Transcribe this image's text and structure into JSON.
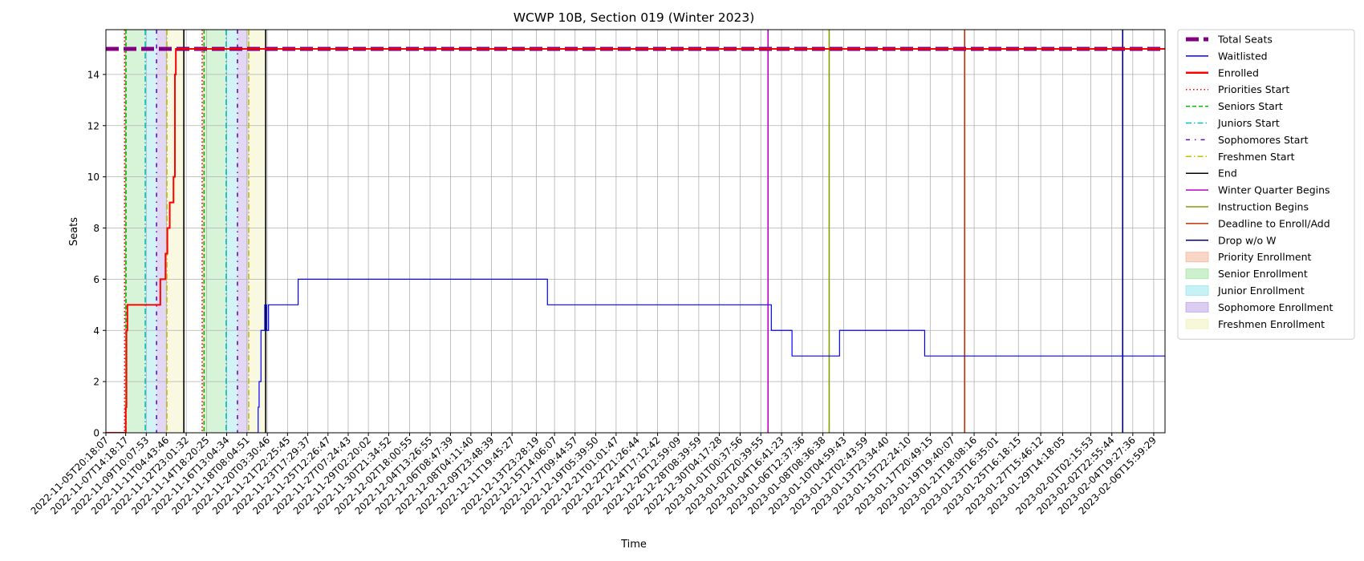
{
  "chart_data": {
    "type": "line",
    "title": "WCWP 10B, Section 019 (Winter 2023)",
    "xlabel": "Time",
    "ylabel": "Seats",
    "ylim": [
      0,
      15.75
    ],
    "xlim": [
      "2022-11-05T20:18:07",
      "2023-02-07T16:00:00"
    ],
    "grid": true,
    "legend_position": "outside-right",
    "y_ticks": [
      0,
      2,
      4,
      6,
      8,
      10,
      12,
      14
    ],
    "x_ticks": [
      "2022-11-05T20:18:07",
      "2022-11-07T14:18:17",
      "2022-11-09T10:07:53",
      "2022-11-11T04:43:46",
      "2022-11-12T23:01:32",
      "2022-11-14T18:20:25",
      "2022-11-16T13:04:34",
      "2022-11-18T08:04:51",
      "2022-11-20T03:30:46",
      "2022-11-21T22:25:45",
      "2022-11-23T17:29:37",
      "2022-11-25T12:26:47",
      "2022-11-27T07:24:43",
      "2022-11-29T02:20:02",
      "2022-11-30T21:34:52",
      "2022-12-02T18:00:55",
      "2022-12-04T13:26:55",
      "2022-12-06T08:47:39",
      "2022-12-08T04:11:40",
      "2022-12-09T23:48:39",
      "2022-12-11T19:45:27",
      "2022-12-13T23:28:19",
      "2022-12-15T14:06:07",
      "2022-12-17T09:44:57",
      "2022-12-19T05:39:50",
      "2022-12-21T01:01:47",
      "2022-12-22T21:26:44",
      "2022-12-24T17:12:42",
      "2022-12-26T12:59:09",
      "2022-12-28T08:39:59",
      "2022-12-30T04:17:28",
      "2023-01-01T00:37:56",
      "2023-01-02T20:39:55",
      "2023-01-04T16:41:23",
      "2023-01-06T12:37:36",
      "2023-01-08T08:36:38",
      "2023-01-10T04:59:43",
      "2023-01-12T02:43:59",
      "2023-01-13T23:34:40",
      "2023-01-15T22:24:10",
      "2023-01-17T20:49:15",
      "2023-01-19T19:40:07",
      "2023-01-21T18:08:16",
      "2023-01-23T16:35:01",
      "2023-01-25T16:18:15",
      "2023-01-27T15:46:12",
      "2023-01-29T14:18:05",
      "2023-02-01T02:15:53",
      "2023-02-02T22:55:44",
      "2023-02-04T19:27:36",
      "2023-02-06T15:59:29"
    ],
    "series": [
      {
        "name": "Total Seats",
        "color": "#800080",
        "style": "dashed-thick",
        "points": [
          [
            "2022-11-05T20:18:07",
            15
          ],
          [
            "2023-02-07T16:00:00",
            15
          ]
        ]
      },
      {
        "name": "Waitlisted",
        "color": "#0000ff",
        "style": "step",
        "points": [
          [
            "2022-11-18T08:04:51",
            0
          ],
          [
            "2022-11-19T08:00:00",
            1
          ],
          [
            "2022-11-19T10:00:00",
            2
          ],
          [
            "2022-11-19T14:00:00",
            4
          ],
          [
            "2022-11-19T22:00:00",
            5
          ],
          [
            "2022-11-20T02:00:00",
            4
          ],
          [
            "2022-11-20T06:00:00",
            5
          ],
          [
            "2022-11-22T21:00:00",
            6
          ],
          [
            "2022-12-14T23:00:00",
            5
          ],
          [
            "2023-01-03T19:00:00",
            4
          ],
          [
            "2023-01-05T15:00:00",
            3
          ],
          [
            "2023-01-09T20:00:00",
            4
          ],
          [
            "2023-01-17T09:00:00",
            3
          ],
          [
            "2023-02-07T16:00:00",
            3
          ]
        ]
      },
      {
        "name": "Enrolled",
        "color": "#ff0000",
        "style": "step",
        "points": [
          [
            "2022-11-05T20:18:07",
            0
          ],
          [
            "2022-11-07T14:30:00",
            1
          ],
          [
            "2022-11-07T16:00:00",
            4
          ],
          [
            "2022-11-07T18:00:00",
            5
          ],
          [
            "2022-11-10T16:00:00",
            6
          ],
          [
            "2022-11-11T03:00:00",
            7
          ],
          [
            "2022-11-11T07:00:00",
            8
          ],
          [
            "2022-11-11T12:00:00",
            9
          ],
          [
            "2022-11-11T20:00:00",
            10
          ],
          [
            "2022-11-11T23:00:00",
            14
          ],
          [
            "2022-11-12T01:00:00",
            15
          ],
          [
            "2023-02-07T16:00:00",
            15
          ]
        ]
      }
    ],
    "vertical_lines": [
      {
        "name": "Priorities Start",
        "color": "#ff0000",
        "style": "dotted",
        "x": [
          "2022-11-07T12:00:00",
          "2022-11-14T09:00:00"
        ]
      },
      {
        "name": "Seniors Start",
        "color": "#00bb00",
        "style": "dashed",
        "x": [
          "2022-11-07T15:00:00",
          "2022-11-14T13:00:00"
        ]
      },
      {
        "name": "Juniors Start",
        "color": "#00bfbf",
        "style": "dashdot",
        "x": [
          "2022-11-09T08:00:00",
          "2022-11-16T12:00:00"
        ]
      },
      {
        "name": "Sophomores Start",
        "color": "#6a0dad",
        "style": "dashdot2",
        "x": [
          "2022-11-10T08:00:00",
          "2022-11-17T12:00:00"
        ]
      },
      {
        "name": "Freshmen Start",
        "color": "#bfbf00",
        "style": "dashdot",
        "x": [
          "2022-11-11T06:00:00",
          "2022-11-18T12:00:00"
        ]
      },
      {
        "name": "End",
        "color": "#000000",
        "style": "solid",
        "x": [
          "2022-11-12T18:00:00",
          "2022-11-20T00:00:00"
        ]
      },
      {
        "name": "Winter Quarter Begins",
        "color": "#c000c0",
        "style": "solid",
        "x": [
          "2023-01-03T12:00:00"
        ]
      },
      {
        "name": "Instruction Begins",
        "color": "#80a000",
        "style": "solid",
        "x": [
          "2023-01-08T22:00:00"
        ]
      },
      {
        "name": "Deadline to Enroll/Add",
        "color": "#c03000",
        "style": "solid",
        "x": [
          "2023-01-20T22:00:00"
        ]
      },
      {
        "name": "Drop w/o W",
        "color": "#000080",
        "style": "solid",
        "x": [
          "2023-02-03T22:00:00"
        ]
      }
    ],
    "shaded_spans": [
      {
        "name": "Priority Enrollment",
        "color": "#f4a582",
        "spans": [
          [
            "2022-11-07T12:00:00",
            "2022-11-07T15:00:00"
          ],
          [
            "2022-11-14T09:00:00",
            "2022-11-14T13:00:00"
          ]
        ]
      },
      {
        "name": "Senior Enrollment",
        "color": "#90e090",
        "spans": [
          [
            "2022-11-07T15:00:00",
            "2022-11-09T08:00:00"
          ],
          [
            "2022-11-14T13:00:00",
            "2022-11-16T12:00:00"
          ]
        ]
      },
      {
        "name": "Junior Enrollment",
        "color": "#80e0e8",
        "spans": [
          [
            "2022-11-09T08:00:00",
            "2022-11-10T08:00:00"
          ],
          [
            "2022-11-16T12:00:00",
            "2022-11-17T12:00:00"
          ]
        ]
      },
      {
        "name": "Sophomore Enrollment",
        "color": "#b090e0",
        "spans": [
          [
            "2022-11-10T08:00:00",
            "2022-11-11T06:00:00"
          ],
          [
            "2022-11-17T12:00:00",
            "2022-11-18T12:00:00"
          ]
        ]
      },
      {
        "name": "Freshmen Enrollment",
        "color": "#eeeeaa",
        "spans": [
          [
            "2022-11-11T06:00:00",
            "2022-11-12T18:00:00"
          ],
          [
            "2022-11-18T12:00:00",
            "2022-11-20T00:00:00"
          ]
        ]
      }
    ],
    "legend": [
      {
        "label": "Total Seats",
        "kind": "line",
        "color": "#800080",
        "style": "dashed-thick"
      },
      {
        "label": "Waitlisted",
        "kind": "line",
        "color": "#0000ff",
        "style": "solid"
      },
      {
        "label": "Enrolled",
        "kind": "line",
        "color": "#ff0000",
        "style": "solid-thick"
      },
      {
        "label": "Priorities Start",
        "kind": "line",
        "color": "#ff0000",
        "style": "dotted"
      },
      {
        "label": "Seniors Start",
        "kind": "line",
        "color": "#00bb00",
        "style": "dashed"
      },
      {
        "label": "Juniors Start",
        "kind": "line",
        "color": "#00bfbf",
        "style": "dashdot"
      },
      {
        "label": "Sophomores Start",
        "kind": "line",
        "color": "#6a0dad",
        "style": "dashdot2"
      },
      {
        "label": "Freshmen Start",
        "kind": "line",
        "color": "#bfbf00",
        "style": "dashdot"
      },
      {
        "label": "End",
        "kind": "line",
        "color": "#000000",
        "style": "solid"
      },
      {
        "label": "Winter Quarter Begins",
        "kind": "line",
        "color": "#c000c0",
        "style": "solid"
      },
      {
        "label": "Instruction Begins",
        "kind": "line",
        "color": "#80a000",
        "style": "solid"
      },
      {
        "label": "Deadline to Enroll/Add",
        "kind": "line",
        "color": "#c03000",
        "style": "solid"
      },
      {
        "label": "Drop w/o W",
        "kind": "line",
        "color": "#000080",
        "style": "solid"
      },
      {
        "label": "Priority Enrollment",
        "kind": "patch",
        "color": "#f4a582"
      },
      {
        "label": "Senior Enrollment",
        "kind": "patch",
        "color": "#90e090"
      },
      {
        "label": "Junior Enrollment",
        "kind": "patch",
        "color": "#80e0e8"
      },
      {
        "label": "Sophomore Enrollment",
        "kind": "patch",
        "color": "#b090e0"
      },
      {
        "label": "Freshmen Enrollment",
        "kind": "patch",
        "color": "#eeeeaa"
      }
    ]
  }
}
